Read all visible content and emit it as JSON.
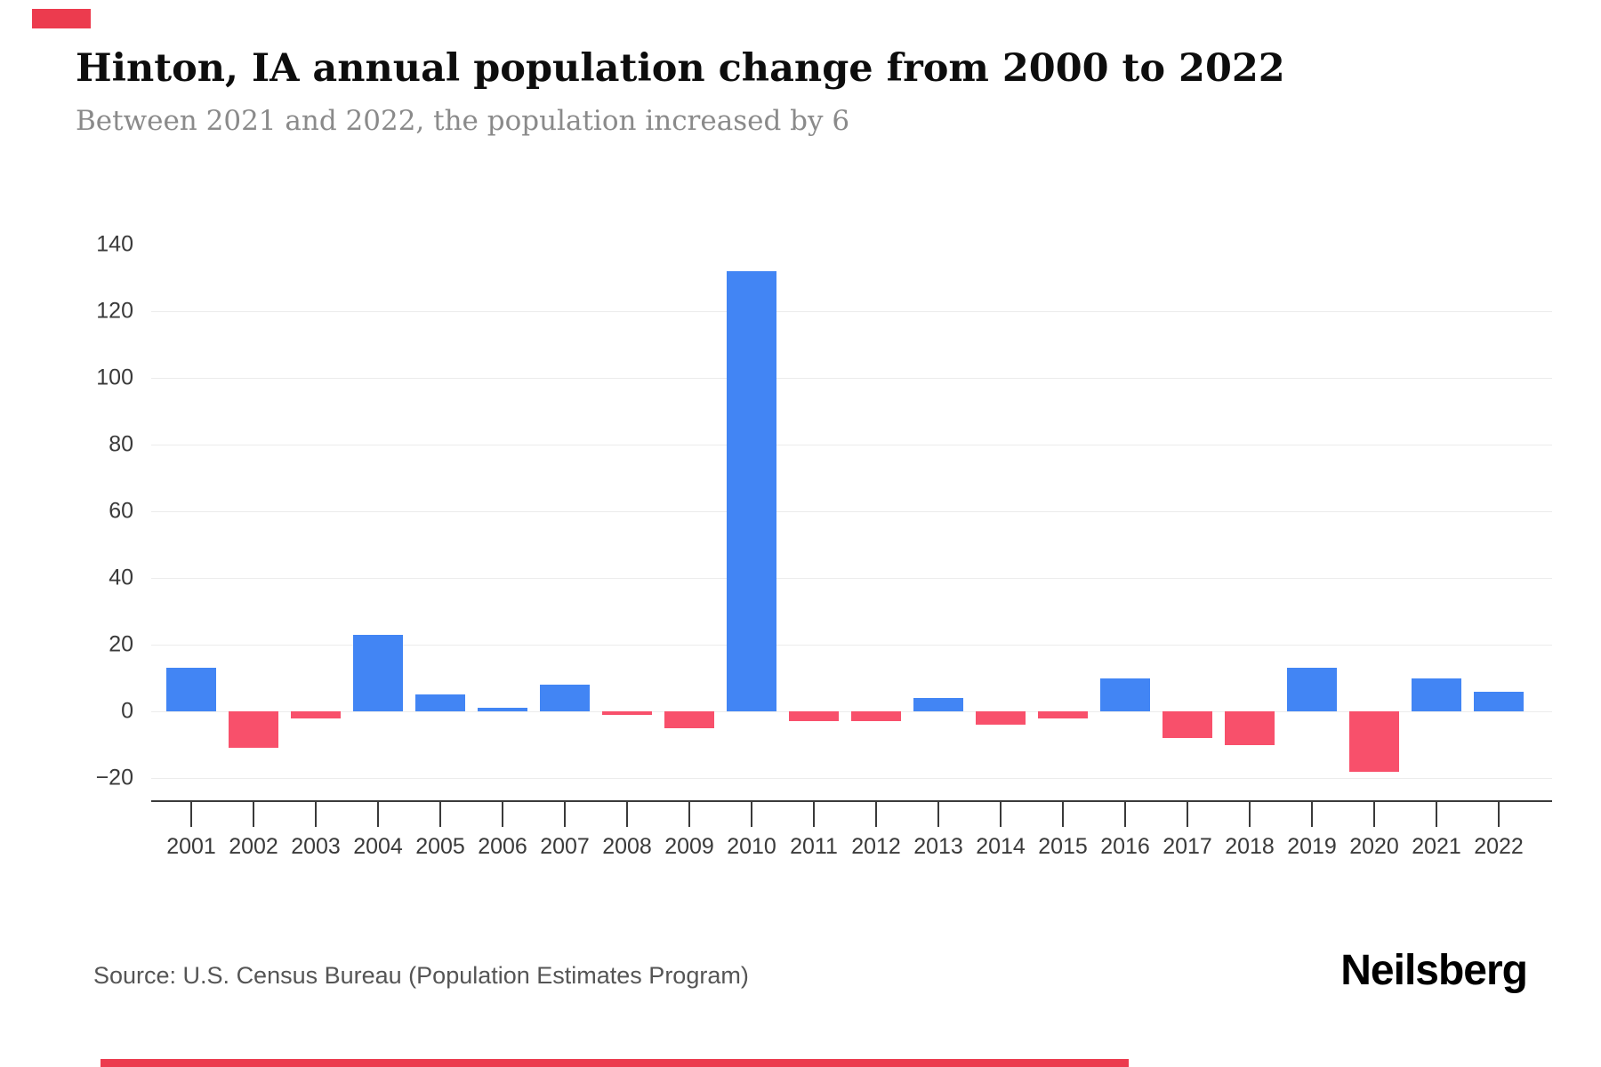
{
  "header": {
    "title": "Hinton, IA annual population change from 2000 to 2022",
    "subtitle": "Between 2021 and 2022, the population increased by 6"
  },
  "footer": {
    "source": "Source: U.S. Census Bureau (Population Estimates Program)",
    "brand": "Neilsberg"
  },
  "overlay": {
    "marker_color": "#ec3b4e"
  },
  "chart_data": {
    "type": "bar",
    "title": "Hinton, IA annual population change from 2000 to 2022",
    "subtitle": "Between 2021 and 2022, the population increased by 6",
    "categories": [
      "2001",
      "2002",
      "2003",
      "2004",
      "2005",
      "2006",
      "2007",
      "2008",
      "2009",
      "2010",
      "2011",
      "2012",
      "2013",
      "2014",
      "2015",
      "2016",
      "2017",
      "2018",
      "2019",
      "2020",
      "2021",
      "2022"
    ],
    "values": [
      13,
      -11,
      -2,
      23,
      5,
      1,
      8,
      -1,
      -5,
      132,
      -3,
      -3,
      4,
      -4,
      -2,
      10,
      -8,
      -10,
      13,
      -18,
      10,
      6
    ],
    "xlabel": "",
    "ylabel": "",
    "ylim": [
      -20,
      140
    ],
    "yticks": [
      140,
      120,
      100,
      80,
      60,
      40,
      20,
      0,
      -20
    ],
    "gridline_values": [
      120,
      100,
      80,
      60,
      40,
      20,
      0,
      -20
    ],
    "grid": true,
    "legend": false,
    "positive_color": "#4285F4",
    "negative_color": "#F8506B",
    "gridline_color": "#ececec",
    "axis_color": "#3a3a3a",
    "source": "Source: U.S. Census Bureau (Population Estimates Program)"
  }
}
